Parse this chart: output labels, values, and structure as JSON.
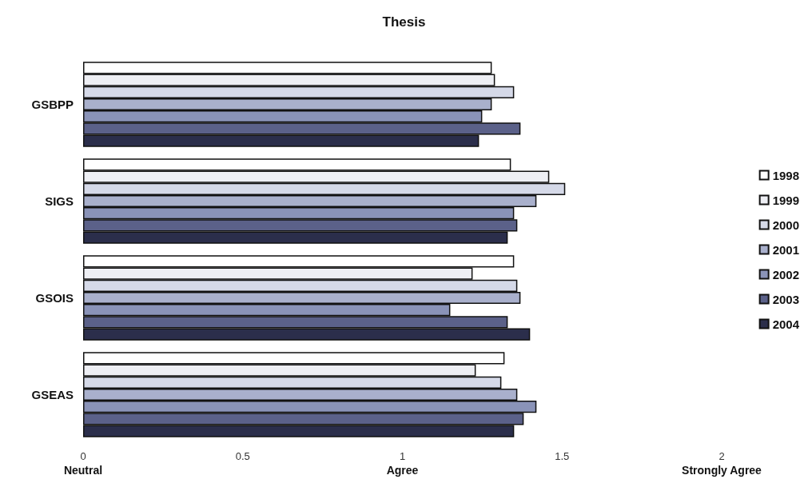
{
  "chart_data": {
    "type": "bar",
    "orientation": "horizontal",
    "title": "Thesis",
    "categories": [
      "GSBPP",
      "SIGS",
      "GSOIS",
      "GSEAS"
    ],
    "series": [
      {
        "name": "1998",
        "color": "#ffffff",
        "values": [
          1.28,
          1.34,
          1.35,
          1.32
        ]
      },
      {
        "name": "1999",
        "color": "#eeeff4",
        "values": [
          1.29,
          1.46,
          1.22,
          1.23
        ]
      },
      {
        "name": "2000",
        "color": "#d5d9e8",
        "values": [
          1.35,
          1.51,
          1.36,
          1.31
        ]
      },
      {
        "name": "2001",
        "color": "#a9b0cc",
        "values": [
          1.28,
          1.42,
          1.37,
          1.36
        ]
      },
      {
        "name": "2002",
        "color": "#8a93b8",
        "values": [
          1.25,
          1.35,
          1.15,
          1.42
        ]
      },
      {
        "name": "2003",
        "color": "#5b6189",
        "values": [
          1.37,
          1.36,
          1.33,
          1.38
        ]
      },
      {
        "name": "2004",
        "color": "#2b2e4b",
        "values": [
          1.24,
          1.33,
          1.4,
          1.35
        ]
      }
    ],
    "xlim": [
      0,
      2
    ],
    "xticks": [
      {
        "value": 0,
        "label": "0\nNeutral"
      },
      0.5,
      {
        "value": 1,
        "label": "1\nAgree"
      },
      1.5,
      {
        "value": 2,
        "label": "2\nStrongly Agree"
      }
    ],
    "grid": false,
    "legend": "right"
  }
}
